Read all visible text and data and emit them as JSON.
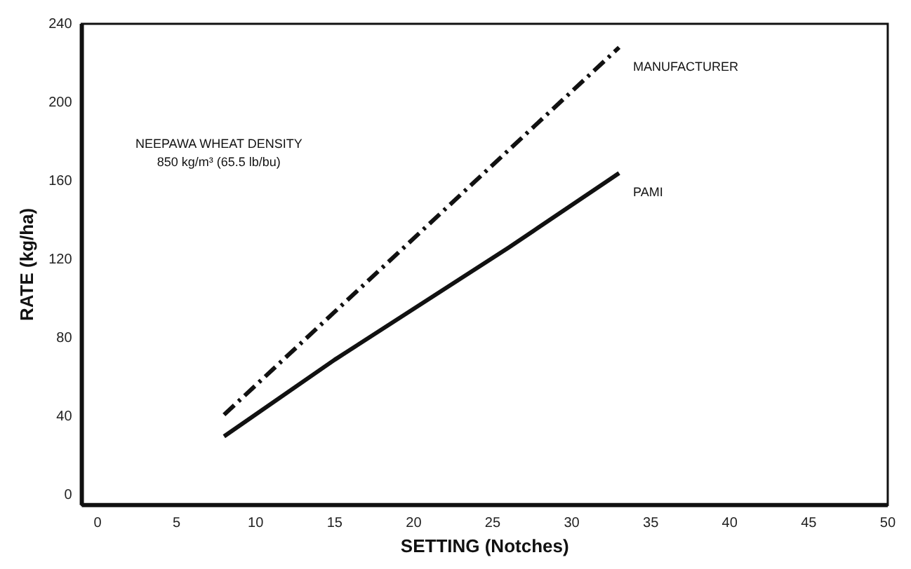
{
  "chart_data": {
    "type": "line",
    "xlabel": "SETTING (Notches)",
    "ylabel": "RATE (kg/ha)",
    "annotations": [
      "NEEPAWA WHEAT DENSITY",
      "850 kg/m³ (65.5 lb/bu)"
    ],
    "series": [
      {
        "name": "MANUFACTURER",
        "color": "#111111",
        "line_style": "dashdot",
        "x": [
          8,
          33
        ],
        "values": [
          41,
          228
        ]
      },
      {
        "name": "PAMI",
        "color": "#111111",
        "line_style": "solid",
        "x": [
          8,
          15,
          26,
          33
        ],
        "values": [
          30,
          69,
          126,
          164
        ]
      }
    ],
    "xlim": [
      -1,
      50
    ],
    "xticks": [
      0,
      5,
      10,
      15,
      20,
      25,
      30,
      35,
      40,
      45,
      50
    ],
    "ylim": [
      -5,
      240
    ],
    "yticks": [
      0,
      40,
      80,
      120,
      160,
      200,
      240
    ],
    "grid": false,
    "legend": false,
    "marker": "none"
  }
}
